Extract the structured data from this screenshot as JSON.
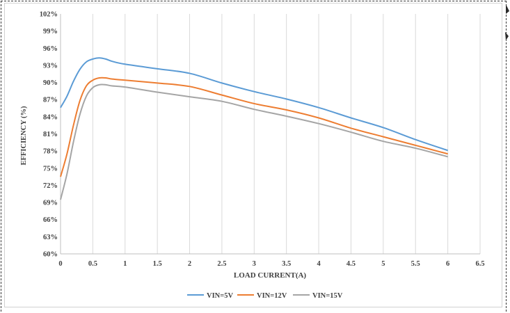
{
  "chart_data": {
    "type": "line",
    "title": "",
    "xlabel": "LOAD CURRENT(A)",
    "ylabel": "EFFICIENCY  (%)",
    "xlim": [
      0,
      6.5
    ],
    "ylim": [
      60,
      102
    ],
    "x_ticks": [
      "0",
      "0.5",
      "1",
      "1.5",
      "2",
      "2.5",
      "3",
      "3.5",
      "4",
      "4.5",
      "5",
      "5.5",
      "6",
      "6.5"
    ],
    "y_ticks": [
      "60%",
      "63%",
      "66%",
      "69%",
      "72%",
      "75%",
      "78%",
      "81%",
      "84%",
      "87%",
      "90%",
      "93%",
      "96%",
      "99%",
      "102%"
    ],
    "grid": "vertical",
    "legend_position": "bottom",
    "series": [
      {
        "name": "VIN=5V",
        "color": "#5B9BD5",
        "points": [
          [
            0,
            85.6
          ],
          [
            0.1,
            87.6
          ],
          [
            0.2,
            90.2
          ],
          [
            0.3,
            92.3
          ],
          [
            0.4,
            93.6
          ],
          [
            0.5,
            94.1
          ],
          [
            0.6,
            94.3
          ],
          [
            0.7,
            94.1
          ],
          [
            0.8,
            93.7
          ],
          [
            1,
            93.2
          ],
          [
            1.5,
            92.4
          ],
          [
            2,
            91.6
          ],
          [
            2.5,
            89.9
          ],
          [
            3,
            88.4
          ],
          [
            3.5,
            87.1
          ],
          [
            4,
            85.6
          ],
          [
            4.5,
            83.8
          ],
          [
            5,
            82.1
          ],
          [
            5.5,
            80.0
          ],
          [
            6,
            78.1
          ]
        ]
      },
      {
        "name": "VIN=12V",
        "color": "#ED7D31",
        "points": [
          [
            0,
            73.5
          ],
          [
            0.1,
            77.5
          ],
          [
            0.2,
            82.5
          ],
          [
            0.3,
            86.8
          ],
          [
            0.4,
            89.4
          ],
          [
            0.5,
            90.4
          ],
          [
            0.6,
            90.8
          ],
          [
            0.7,
            90.8
          ],
          [
            0.8,
            90.6
          ],
          [
            1,
            90.4
          ],
          [
            1.5,
            89.9
          ],
          [
            2,
            89.3
          ],
          [
            2.5,
            87.8
          ],
          [
            3,
            86.3
          ],
          [
            3.5,
            85.2
          ],
          [
            4,
            83.8
          ],
          [
            4.5,
            82.0
          ],
          [
            5,
            80.5
          ],
          [
            5.5,
            79.0
          ],
          [
            6,
            77.5
          ]
        ]
      },
      {
        "name": "VIN=15V",
        "color": "#A5A5A5",
        "points": [
          [
            0,
            69.5
          ],
          [
            0.1,
            74.0
          ],
          [
            0.2,
            79.6
          ],
          [
            0.3,
            84.4
          ],
          [
            0.4,
            87.6
          ],
          [
            0.5,
            89.1
          ],
          [
            0.6,
            89.6
          ],
          [
            0.7,
            89.6
          ],
          [
            0.8,
            89.4
          ],
          [
            1,
            89.2
          ],
          [
            1.5,
            88.3
          ],
          [
            2,
            87.5
          ],
          [
            2.5,
            86.7
          ],
          [
            3,
            85.3
          ],
          [
            3.5,
            84.1
          ],
          [
            4,
            82.8
          ],
          [
            4.5,
            81.3
          ],
          [
            5,
            79.7
          ],
          [
            5.5,
            78.5
          ],
          [
            6,
            77.0
          ]
        ]
      }
    ]
  }
}
